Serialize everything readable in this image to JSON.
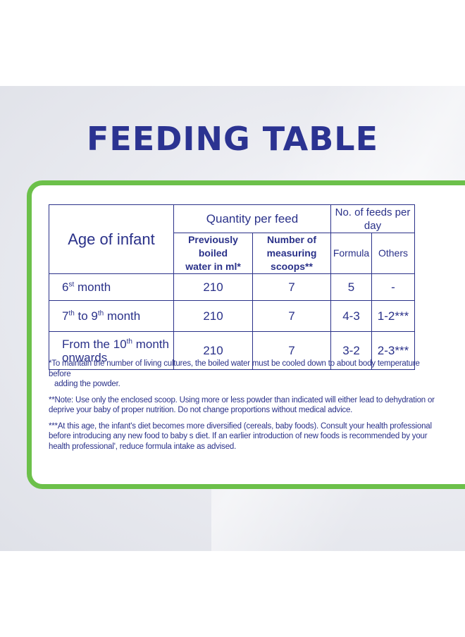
{
  "title": "FEEDING TABLE",
  "table": {
    "age_header": "Age of infant",
    "quantity_header": "Quantity per feed",
    "feeds_header": "No. of feeds per day",
    "water_line1": "Previously boiled",
    "water_line2": "water in ml*",
    "scoops_line1": "Number of",
    "scoops_line2": "measuring scoops**",
    "formula_header": "Formula",
    "others_header": "Others",
    "rows": [
      {
        "age_num": "6",
        "age_sup": "st",
        "age_rest": " month",
        "water": "210",
        "scoops": "7",
        "formula": "5",
        "others": "-"
      },
      {
        "age_num": "7",
        "age_sup": "th",
        "age_mid": " to 9",
        "age_sup2": "th",
        "age_rest": " month",
        "water": "210",
        "scoops": "7",
        "formula": "4-3",
        "others": "1-2***"
      },
      {
        "age_pre": "From the 10",
        "age_sup": "th",
        "age_rest": " month",
        "age_line2": "onwards",
        "water": "210",
        "scoops": "7",
        "formula": "3-2",
        "others": "2-3***"
      }
    ]
  },
  "notes": {
    "note1_a": "*To maintain the number of living cultures, the boiled water must be cooled down to about body temperature before",
    "note1_b": "adding the powder.",
    "note2_a": "**Note: Use only the enclosed scoop. Using more or less powder than indicated will either lead to dehydration or",
    "note2_b": "deprive your baby of proper nutrition. Do not change proportions without medical advice.",
    "note3_a": "***At this age, the infant's diet becomes more diversified (cereals, baby foods). Consult your health professional",
    "note3_b": "before introducing any new food to baby s diet. If an earlier introduction of new foods is recommended by your",
    "note3_c": "health professional', reduce formula intake as advised."
  },
  "colors": {
    "title": "#2b3391",
    "text": "#2a3189",
    "frame": "#6cc04a"
  }
}
